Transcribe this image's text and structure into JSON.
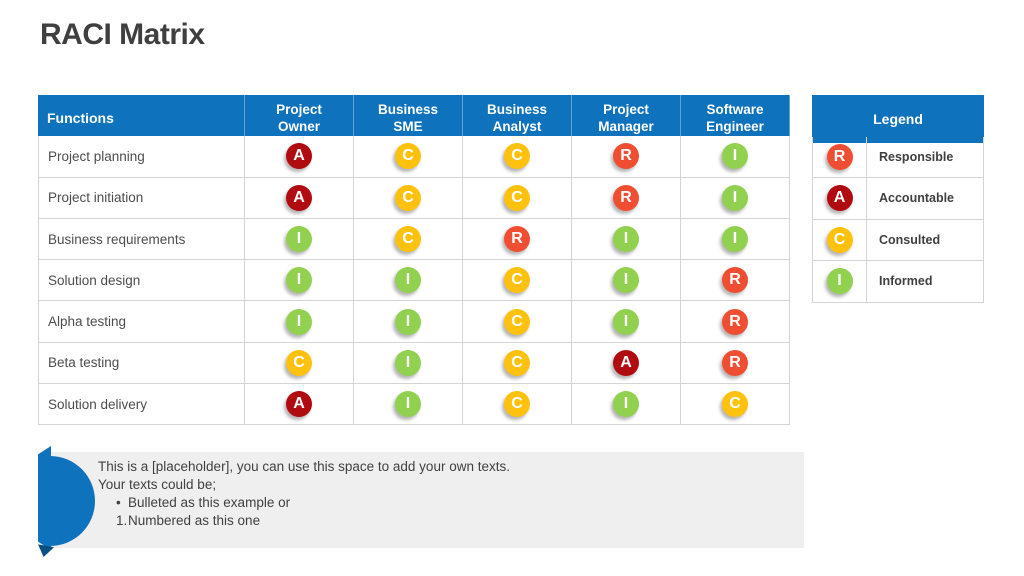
{
  "slide": {
    "title": "RACI Matrix"
  },
  "matrix": {
    "header_functions": "Functions",
    "roles": [
      "Project\nOwner",
      "Business\nSME",
      "Business\nAnalyst",
      "Project\nManager",
      "Software\nEngineer"
    ],
    "rows": [
      {
        "function": "Project planning",
        "codes": [
          "A",
          "C",
          "C",
          "R",
          "I"
        ]
      },
      {
        "function": "Project initiation",
        "codes": [
          "A",
          "C",
          "C",
          "R",
          "I"
        ]
      },
      {
        "function": "Business requirements",
        "codes": [
          "I",
          "C",
          "R",
          "I",
          "I"
        ]
      },
      {
        "function": "Solution design",
        "codes": [
          "I",
          "I",
          "C",
          "I",
          "R"
        ]
      },
      {
        "function": "Alpha testing",
        "codes": [
          "I",
          "I",
          "C",
          "I",
          "R"
        ]
      },
      {
        "function": "Beta testing",
        "codes": [
          "C",
          "I",
          "C",
          "A",
          "R"
        ]
      },
      {
        "function": "Solution delivery",
        "codes": [
          "A",
          "I",
          "C",
          "I",
          "C"
        ]
      }
    ]
  },
  "legend": {
    "title": "Legend",
    "items": [
      {
        "code": "R",
        "label": "Responsible"
      },
      {
        "code": "A",
        "label": "Accountable"
      },
      {
        "code": "C",
        "label": "Consulted"
      },
      {
        "code": "I",
        "label": "Informed"
      }
    ]
  },
  "placeholder": {
    "line1": "This is a [placeholder], you can use this space to add your own texts.",
    "line2": "Your texts could be;",
    "bullet_glyph": "•",
    "bullet_item": "Bulleted as this example or",
    "number_label": "1.",
    "numbered_item": "Numbered as this one"
  },
  "colors": {
    "header_blue": "#0f72bc",
    "responsible_red_orange": "#f04e33",
    "accountable_dark_red": "#b00b10",
    "consulted_yellow": "#fec10d",
    "informed_green": "#92d050",
    "title_gray": "#3f3f3f",
    "placeholder_bg": "#efefef"
  }
}
